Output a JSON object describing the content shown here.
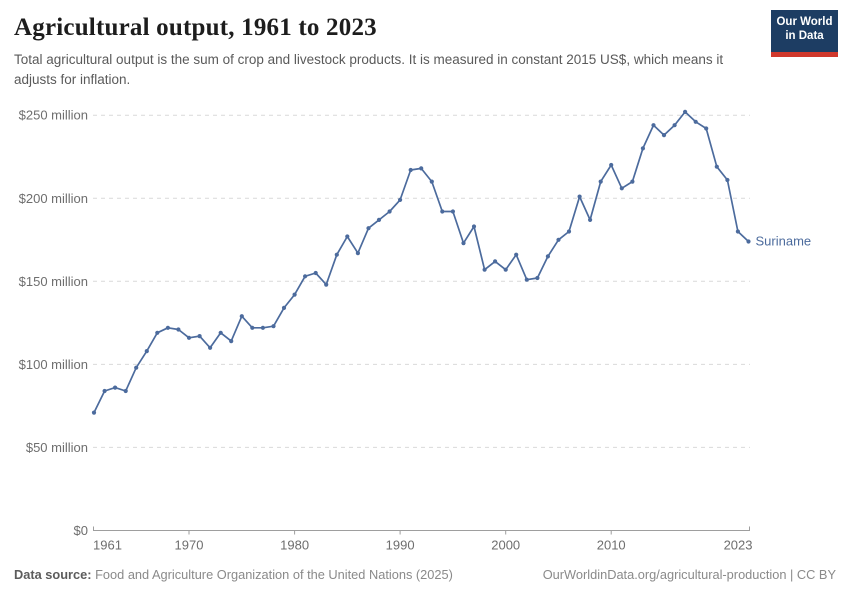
{
  "logo": {
    "line1": "Our World",
    "line2": "in Data",
    "bg_color": "#1d3d63",
    "stripe_color": "#d0382c"
  },
  "footer": {
    "data_source_label": "Data source:",
    "data_source_text": "Food and Agriculture Organization of the United Nations (2025)",
    "link_text": "OurWorldinData.org/agricultural-production | CC BY"
  },
  "colors": {
    "line": "#4c6b9d",
    "grid": "#d9d9d9",
    "axis": "#9e9e9e",
    "tick_text": "#6e6e6e"
  },
  "chart_data": {
    "type": "line",
    "title": "Agricultural output, 1961 to 2023",
    "subtitle": "Total agricultural output is the sum of crop and livestock products. It is measured in constant 2015 US$, which means it adjusts for inflation.",
    "series_label": "Suriname",
    "unit": "constant 2015 US$, millions",
    "xlim": [
      1961,
      2023
    ],
    "ylim": [
      0,
      250
    ],
    "grid": "dashed-horizontal",
    "legend_position": "end-of-line",
    "x_ticks": [
      1961,
      1970,
      1980,
      1990,
      2000,
      2010,
      2023
    ],
    "y_ticks": [
      {
        "value": 0,
        "label": "$0"
      },
      {
        "value": 50,
        "label": "$50 million"
      },
      {
        "value": 100,
        "label": "$100 million"
      },
      {
        "value": 150,
        "label": "$150 million"
      },
      {
        "value": 200,
        "label": "$200 million"
      },
      {
        "value": 250,
        "label": "$250 million"
      }
    ],
    "x": [
      1961,
      1962,
      1963,
      1964,
      1965,
      1966,
      1967,
      1968,
      1969,
      1970,
      1971,
      1972,
      1973,
      1974,
      1975,
      1976,
      1977,
      1978,
      1979,
      1980,
      1981,
      1982,
      1983,
      1984,
      1985,
      1986,
      1987,
      1988,
      1989,
      1990,
      1991,
      1992,
      1993,
      1994,
      1995,
      1996,
      1997,
      1998,
      1999,
      2000,
      2001,
      2002,
      2003,
      2004,
      2005,
      2006,
      2007,
      2008,
      2009,
      2010,
      2011,
      2012,
      2013,
      2014,
      2015,
      2016,
      2017,
      2018,
      2019,
      2020,
      2021,
      2022,
      2023
    ],
    "values": [
      71,
      84,
      86,
      84,
      98,
      108,
      119,
      122,
      121,
      116,
      117,
      110,
      119,
      114,
      129,
      122,
      122,
      123,
      134,
      142,
      153,
      155,
      148,
      166,
      177,
      167,
      182,
      187,
      192,
      199,
      217,
      218,
      210,
      192,
      192,
      173,
      183,
      157,
      162,
      157,
      166,
      151,
      152,
      165,
      175,
      180,
      201,
      187,
      210,
      220,
      206,
      210,
      230,
      244,
      238,
      244,
      252,
      246,
      242,
      219,
      211,
      180,
      174
    ]
  }
}
